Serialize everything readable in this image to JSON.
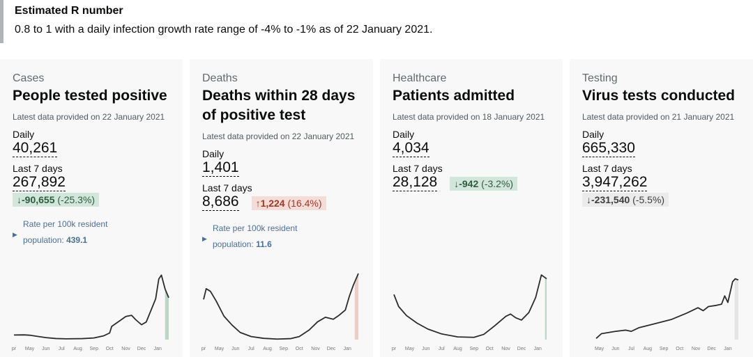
{
  "r_number": {
    "title": "Estimated R number",
    "text": "0.8 to 1 with a daily infection growth rate range of -4% to -1% as of 22 January 2021."
  },
  "months": [
    "pr",
    "May",
    "Jun",
    "Jul",
    "Aug",
    "Sep",
    "Oct",
    "Nov",
    "Dec",
    "Jan"
  ],
  "cards": [
    {
      "category": "Cases",
      "title": "People tested positive",
      "date": "Latest data provided on 22 January 2021",
      "daily_label": "Daily",
      "daily": "40,261",
      "week_label": "Last 7 days",
      "week": "267,892",
      "arrow": "↓",
      "change": "-90,655",
      "pct": "(-25.3%)",
      "tone": "green",
      "rate_line1": "Rate per 100k resident",
      "rate_line2": "population: ",
      "rate_value": "439.1"
    },
    {
      "category": "Deaths",
      "title": "Deaths within 28 days of positive test",
      "date": "Latest data provided on 22 January 2021",
      "daily_label": "Daily",
      "daily": "1,401",
      "week_label": "Last 7 days",
      "week": "8,686",
      "arrow": "↑",
      "change": "1,224",
      "pct": "(16.4%)",
      "tone": "red",
      "rate_line1": "Rate per 100k resident",
      "rate_line2": "population: ",
      "rate_value": "11.6"
    },
    {
      "category": "Healthcare",
      "title": "Patients admitted",
      "date": "Latest data provided on 18 January 2021",
      "daily_label": "Daily",
      "daily": "4,034",
      "week_label": "Last 7 days",
      "week": "28,128",
      "arrow": "↓",
      "change": "-942",
      "pct": "(-3.2%)",
      "tone": "green"
    },
    {
      "category": "Testing",
      "title": "Virus tests conducted",
      "date": "Latest data provided on 21 January 2021",
      "daily_label": "Daily",
      "daily": "665,330",
      "week_label": "Last 7 days",
      "week": "3,947,262",
      "arrow": "↓",
      "change": "-231,540",
      "pct": "(-5.5%)",
      "tone": "grey"
    }
  ],
  "chart_data": [
    {
      "type": "line",
      "start": "2020-04-01",
      "end": "2021-01-22",
      "ylim": [
        0,
        60000
      ],
      "highlight_color": "#bcd6c6",
      "points": [
        [
          "2020-04-01",
          4200
        ],
        [
          "2020-04-20",
          4300
        ],
        [
          "2020-05-01",
          4000
        ],
        [
          "2020-05-15",
          3000
        ],
        [
          "2020-06-01",
          1800
        ],
        [
          "2020-06-20",
          1000
        ],
        [
          "2020-07-10",
          700
        ],
        [
          "2020-08-10",
          900
        ],
        [
          "2020-09-01",
          1500
        ],
        [
          "2020-09-20",
          3500
        ],
        [
          "2020-10-01",
          6000
        ],
        [
          "2020-10-05",
          12000
        ],
        [
          "2020-10-20",
          17000
        ],
        [
          "2020-11-01",
          21000
        ],
        [
          "2020-11-12",
          22000
        ],
        [
          "2020-11-20",
          18000
        ],
        [
          "2020-12-01",
          13500
        ],
        [
          "2020-12-10",
          16000
        ],
        [
          "2020-12-22",
          30000
        ],
        [
          "2020-12-28",
          37000
        ],
        [
          "2021-01-03",
          55000
        ],
        [
          "2021-01-08",
          58500
        ],
        [
          "2021-01-15",
          46000
        ],
        [
          "2021-01-22",
          38000
        ]
      ]
    },
    {
      "type": "line",
      "start": "2020-04-01",
      "end": "2021-01-22",
      "ylim": [
        0,
        1300
      ],
      "highlight_color": "#efcdc4",
      "points": [
        [
          "2020-04-01",
          790
        ],
        [
          "2020-04-06",
          1000
        ],
        [
          "2020-04-14",
          950
        ],
        [
          "2020-04-25",
          760
        ],
        [
          "2020-05-10",
          460
        ],
        [
          "2020-05-25",
          290
        ],
        [
          "2020-06-10",
          140
        ],
        [
          "2020-07-01",
          60
        ],
        [
          "2020-07-25",
          25
        ],
        [
          "2020-08-20",
          10
        ],
        [
          "2020-09-15",
          20
        ],
        [
          "2020-10-01",
          60
        ],
        [
          "2020-10-20",
          190
        ],
        [
          "2020-11-05",
          350
        ],
        [
          "2020-11-20",
          440
        ],
        [
          "2020-12-05",
          400
        ],
        [
          "2020-12-15",
          470
        ],
        [
          "2020-12-28",
          580
        ],
        [
          "2021-01-05",
          860
        ],
        [
          "2021-01-12",
          1060
        ],
        [
          "2021-01-22",
          1300
        ]
      ]
    },
    {
      "type": "line",
      "start": "2020-04-01",
      "end": "2021-01-22",
      "ylim": [
        0,
        4400
      ],
      "highlight_color": "#bcd6c6",
      "points": [
        [
          "2020-04-01",
          3000
        ],
        [
          "2020-04-10",
          2200
        ],
        [
          "2020-04-25",
          1600
        ],
        [
          "2020-05-15",
          1100
        ],
        [
          "2020-06-05",
          700
        ],
        [
          "2020-07-01",
          380
        ],
        [
          "2020-08-01",
          180
        ],
        [
          "2020-09-01",
          150
        ],
        [
          "2020-09-20",
          350
        ],
        [
          "2020-10-10",
          900
        ],
        [
          "2020-11-01",
          1550
        ],
        [
          "2020-11-10",
          1700
        ],
        [
          "2020-11-20",
          1450
        ],
        [
          "2020-12-01",
          1300
        ],
        [
          "2020-12-15",
          1800
        ],
        [
          "2020-12-28",
          2800
        ],
        [
          "2021-01-08",
          4300
        ],
        [
          "2021-01-12",
          4200
        ],
        [
          "2021-01-18",
          4050
        ]
      ]
    },
    {
      "type": "line",
      "start": "2020-04-25",
      "end": "2021-01-21",
      "ylim": [
        40000,
        600000
      ],
      "highlight_color": "#e4e4e4",
      "points": [
        [
          "2020-04-25",
          50000
        ],
        [
          "2020-05-05",
          90000
        ],
        [
          "2020-06-01",
          110000
        ],
        [
          "2020-06-20",
          120000
        ],
        [
          "2020-07-01",
          110000
        ],
        [
          "2020-07-15",
          140000
        ],
        [
          "2020-08-15",
          175000
        ],
        [
          "2020-09-15",
          210000
        ],
        [
          "2020-10-15",
          265000
        ],
        [
          "2020-11-05",
          310000
        ],
        [
          "2020-11-15",
          285000
        ],
        [
          "2020-11-25",
          320000
        ],
        [
          "2020-12-10",
          330000
        ],
        [
          "2020-12-20",
          340000
        ],
        [
          "2020-12-26",
          410000
        ],
        [
          "2021-01-01",
          355000
        ],
        [
          "2021-01-10",
          530000
        ],
        [
          "2021-01-15",
          555000
        ],
        [
          "2021-01-21",
          545000
        ]
      ]
    }
  ]
}
